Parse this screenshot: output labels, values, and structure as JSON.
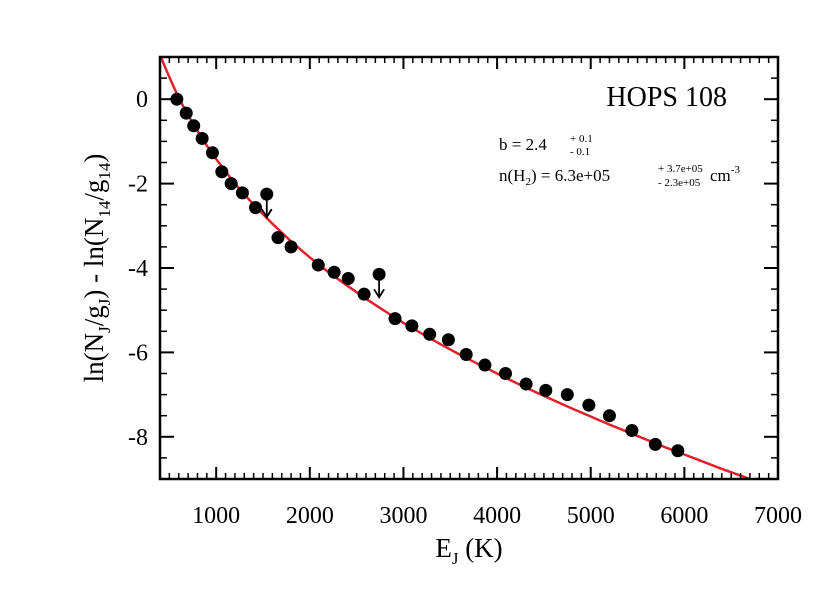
{
  "chart_data": {
    "type": "scatter",
    "title": "",
    "xlabel": "E_J (K)",
    "ylabel": "ln(N_J/g_J) - ln(N_14/g_14)",
    "xlim": [
      400,
      7000
    ],
    "ylim": [
      -9,
      1
    ],
    "x_ticks": [
      "1000",
      "2000",
      "3000",
      "4000",
      "5000",
      "6000",
      "7000"
    ],
    "y_ticks": [
      "0",
      "-2",
      "-4",
      "-6",
      "-8"
    ],
    "x_tick_values": [
      1000,
      2000,
      3000,
      4000,
      5000,
      6000,
      7000
    ],
    "y_tick_values": [
      0,
      -2,
      -4,
      -6,
      -8
    ],
    "annotation": {
      "object": "HOPS 108",
      "b_main": "b = 2.4",
      "b_plus": "+ 0.1",
      "b_minus": "- 0.1",
      "n_main": "n(H",
      "n_sub": "2",
      "n_mid": ") =  6.3e+05",
      "n_plus": "+ 3.7e+05",
      "n_minus": "- 2.3e+05",
      "n_unit": "cm",
      "n_unit_exp": "-3"
    },
    "series": [
      {
        "type": "scatter",
        "points": [
          [
            580,
            0.0
          ],
          [
            680,
            -0.33
          ],
          [
            760,
            -0.63
          ],
          [
            850,
            -0.93
          ],
          [
            960,
            -1.27
          ],
          [
            1060,
            -1.72
          ],
          [
            1160,
            -2.0
          ],
          [
            1280,
            -2.22
          ],
          [
            1420,
            -2.57
          ],
          [
            1660,
            -3.28
          ],
          [
            1800,
            -3.5
          ],
          [
            2090,
            -3.93
          ],
          [
            2260,
            -4.1
          ],
          [
            2410,
            -4.25
          ],
          [
            2580,
            -4.62
          ],
          [
            2910,
            -5.2
          ],
          [
            3090,
            -5.37
          ],
          [
            3280,
            -5.57
          ],
          [
            3480,
            -5.7
          ],
          [
            3670,
            -6.05
          ],
          [
            3870,
            -6.3
          ],
          [
            4090,
            -6.5
          ],
          [
            4310,
            -6.75
          ],
          [
            4520,
            -6.9
          ],
          [
            4750,
            -7.0
          ],
          [
            4980,
            -7.25
          ],
          [
            5200,
            -7.5
          ],
          [
            5440,
            -7.85
          ],
          [
            5690,
            -8.18
          ],
          [
            5930,
            -8.33
          ]
        ]
      },
      {
        "type": "upper-limit",
        "points": [
          [
            1540,
            -2.25
          ],
          [
            2740,
            -4.15
          ]
        ]
      },
      {
        "type": "line",
        "color": "#e0222b",
        "points": [
          [
            400,
            1.05
          ],
          [
            500,
            0.52
          ],
          [
            600,
            0.03
          ],
          [
            700,
            -0.38
          ],
          [
            800,
            -0.75
          ],
          [
            900,
            -1.1
          ],
          [
            1000,
            -1.42
          ],
          [
            1200,
            -2.0
          ],
          [
            1400,
            -2.5
          ],
          [
            1600,
            -2.95
          ],
          [
            1800,
            -3.37
          ],
          [
            2000,
            -3.75
          ],
          [
            2200,
            -4.1
          ],
          [
            2400,
            -4.42
          ],
          [
            2600,
            -4.73
          ],
          [
            2800,
            -5.02
          ],
          [
            3000,
            -5.3
          ],
          [
            3200,
            -5.56
          ],
          [
            3400,
            -5.81
          ],
          [
            3600,
            -6.05
          ],
          [
            3800,
            -6.28
          ],
          [
            4000,
            -6.5
          ],
          [
            4200,
            -6.72
          ],
          [
            4400,
            -6.93
          ],
          [
            4600,
            -7.13
          ],
          [
            4800,
            -7.33
          ],
          [
            5000,
            -7.52
          ],
          [
            5200,
            -7.71
          ],
          [
            5400,
            -7.89
          ],
          [
            5600,
            -8.07
          ],
          [
            5800,
            -8.25
          ],
          [
            6000,
            -8.42
          ],
          [
            6200,
            -8.59
          ],
          [
            6400,
            -8.76
          ],
          [
            6600,
            -8.92
          ],
          [
            6700,
            -9.0
          ]
        ]
      }
    ]
  }
}
